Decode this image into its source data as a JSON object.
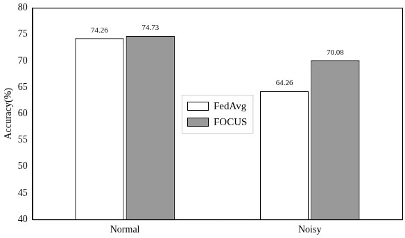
{
  "chart_data": {
    "type": "bar",
    "categories": [
      "Normal",
      "Noisy"
    ],
    "series": [
      {
        "name": "FedAvg",
        "color": "#ffffff",
        "values": [
          74.26,
          64.26
        ]
      },
      {
        "name": "FOCUS",
        "color": "#999999",
        "values": [
          74.73,
          70.08
        ]
      }
    ],
    "y_label": "Accuracy(%)",
    "ylim": [
      40,
      80
    ],
    "yticks": [
      40,
      45,
      50,
      55,
      60,
      65,
      70,
      75,
      80
    ],
    "grid": false,
    "legend": "center",
    "data_labels": true
  }
}
